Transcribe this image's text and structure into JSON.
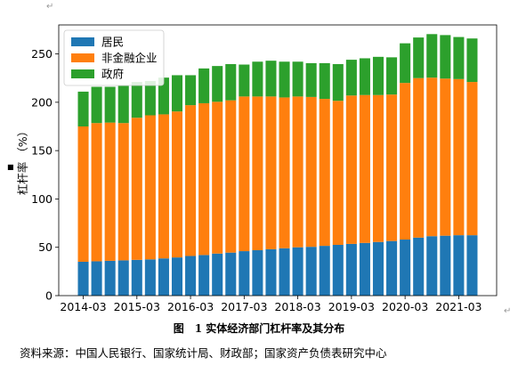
{
  "chart_data": {
    "type": "bar",
    "stacked": true,
    "categories": [
      "2014-03",
      "2014-06",
      "2014-09",
      "2014-12",
      "2015-03",
      "2015-06",
      "2015-09",
      "2015-12",
      "2016-03",
      "2016-06",
      "2016-09",
      "2016-12",
      "2017-03",
      "2017-06",
      "2017-09",
      "2017-12",
      "2018-03",
      "2018-06",
      "2018-09",
      "2018-12",
      "2019-03",
      "2019-06",
      "2019-09",
      "2019-12",
      "2020-03",
      "2020-06",
      "2020-09",
      "2020-12",
      "2021-03",
      "2021-06"
    ],
    "x_tick_labels": [
      "2014-03",
      "2015-03",
      "2016-03",
      "2017-03",
      "2018-03",
      "2019-03",
      "2020-03",
      "2021-03"
    ],
    "series": [
      {
        "name": "居民",
        "color": "#1f77b4",
        "values": [
          35,
          35.5,
          36,
          36.5,
          37,
          37.5,
          38.5,
          39.5,
          41,
          42,
          43.5,
          44.5,
          46,
          47,
          48,
          49,
          50,
          50.5,
          51.5,
          52.5,
          53.5,
          54.5,
          55.5,
          56.5,
          58,
          60,
          61.5,
          62,
          62.5,
          62.5
        ]
      },
      {
        "name": "非金融企业",
        "color": "#ff7f0e",
        "values": [
          140,
          143,
          143,
          142,
          147,
          149,
          149,
          151,
          156,
          157,
          157,
          157.5,
          160,
          159,
          158,
          156,
          156,
          155,
          152,
          149,
          153.5,
          153,
          152,
          151.5,
          162,
          165,
          164,
          162.5,
          161.5,
          158.5
        ]
      },
      {
        "name": "政府",
        "color": "#2ca02c",
        "values": [
          36,
          37.5,
          37,
          38.5,
          37,
          35.5,
          38,
          37.5,
          31,
          36,
          37,
          37.5,
          33,
          36,
          37,
          37,
          36,
          35,
          37,
          38,
          37,
          38,
          39.5,
          38.5,
          41,
          42,
          45,
          45,
          43.5,
          45
        ]
      }
    ],
    "xlabel": "",
    "ylabel": "杠杆率 （%）",
    "ylim": [
      0,
      280
    ],
    "yticks": [
      0,
      50,
      100,
      150,
      200,
      250
    ],
    "legend_position": "top-left",
    "grid": false
  },
  "caption": "图　1 实体经济部门杠杆率及其分布",
  "source": "资料来源：中国人民银行、国家统计局、财政部；国家资产负债表研究中心"
}
